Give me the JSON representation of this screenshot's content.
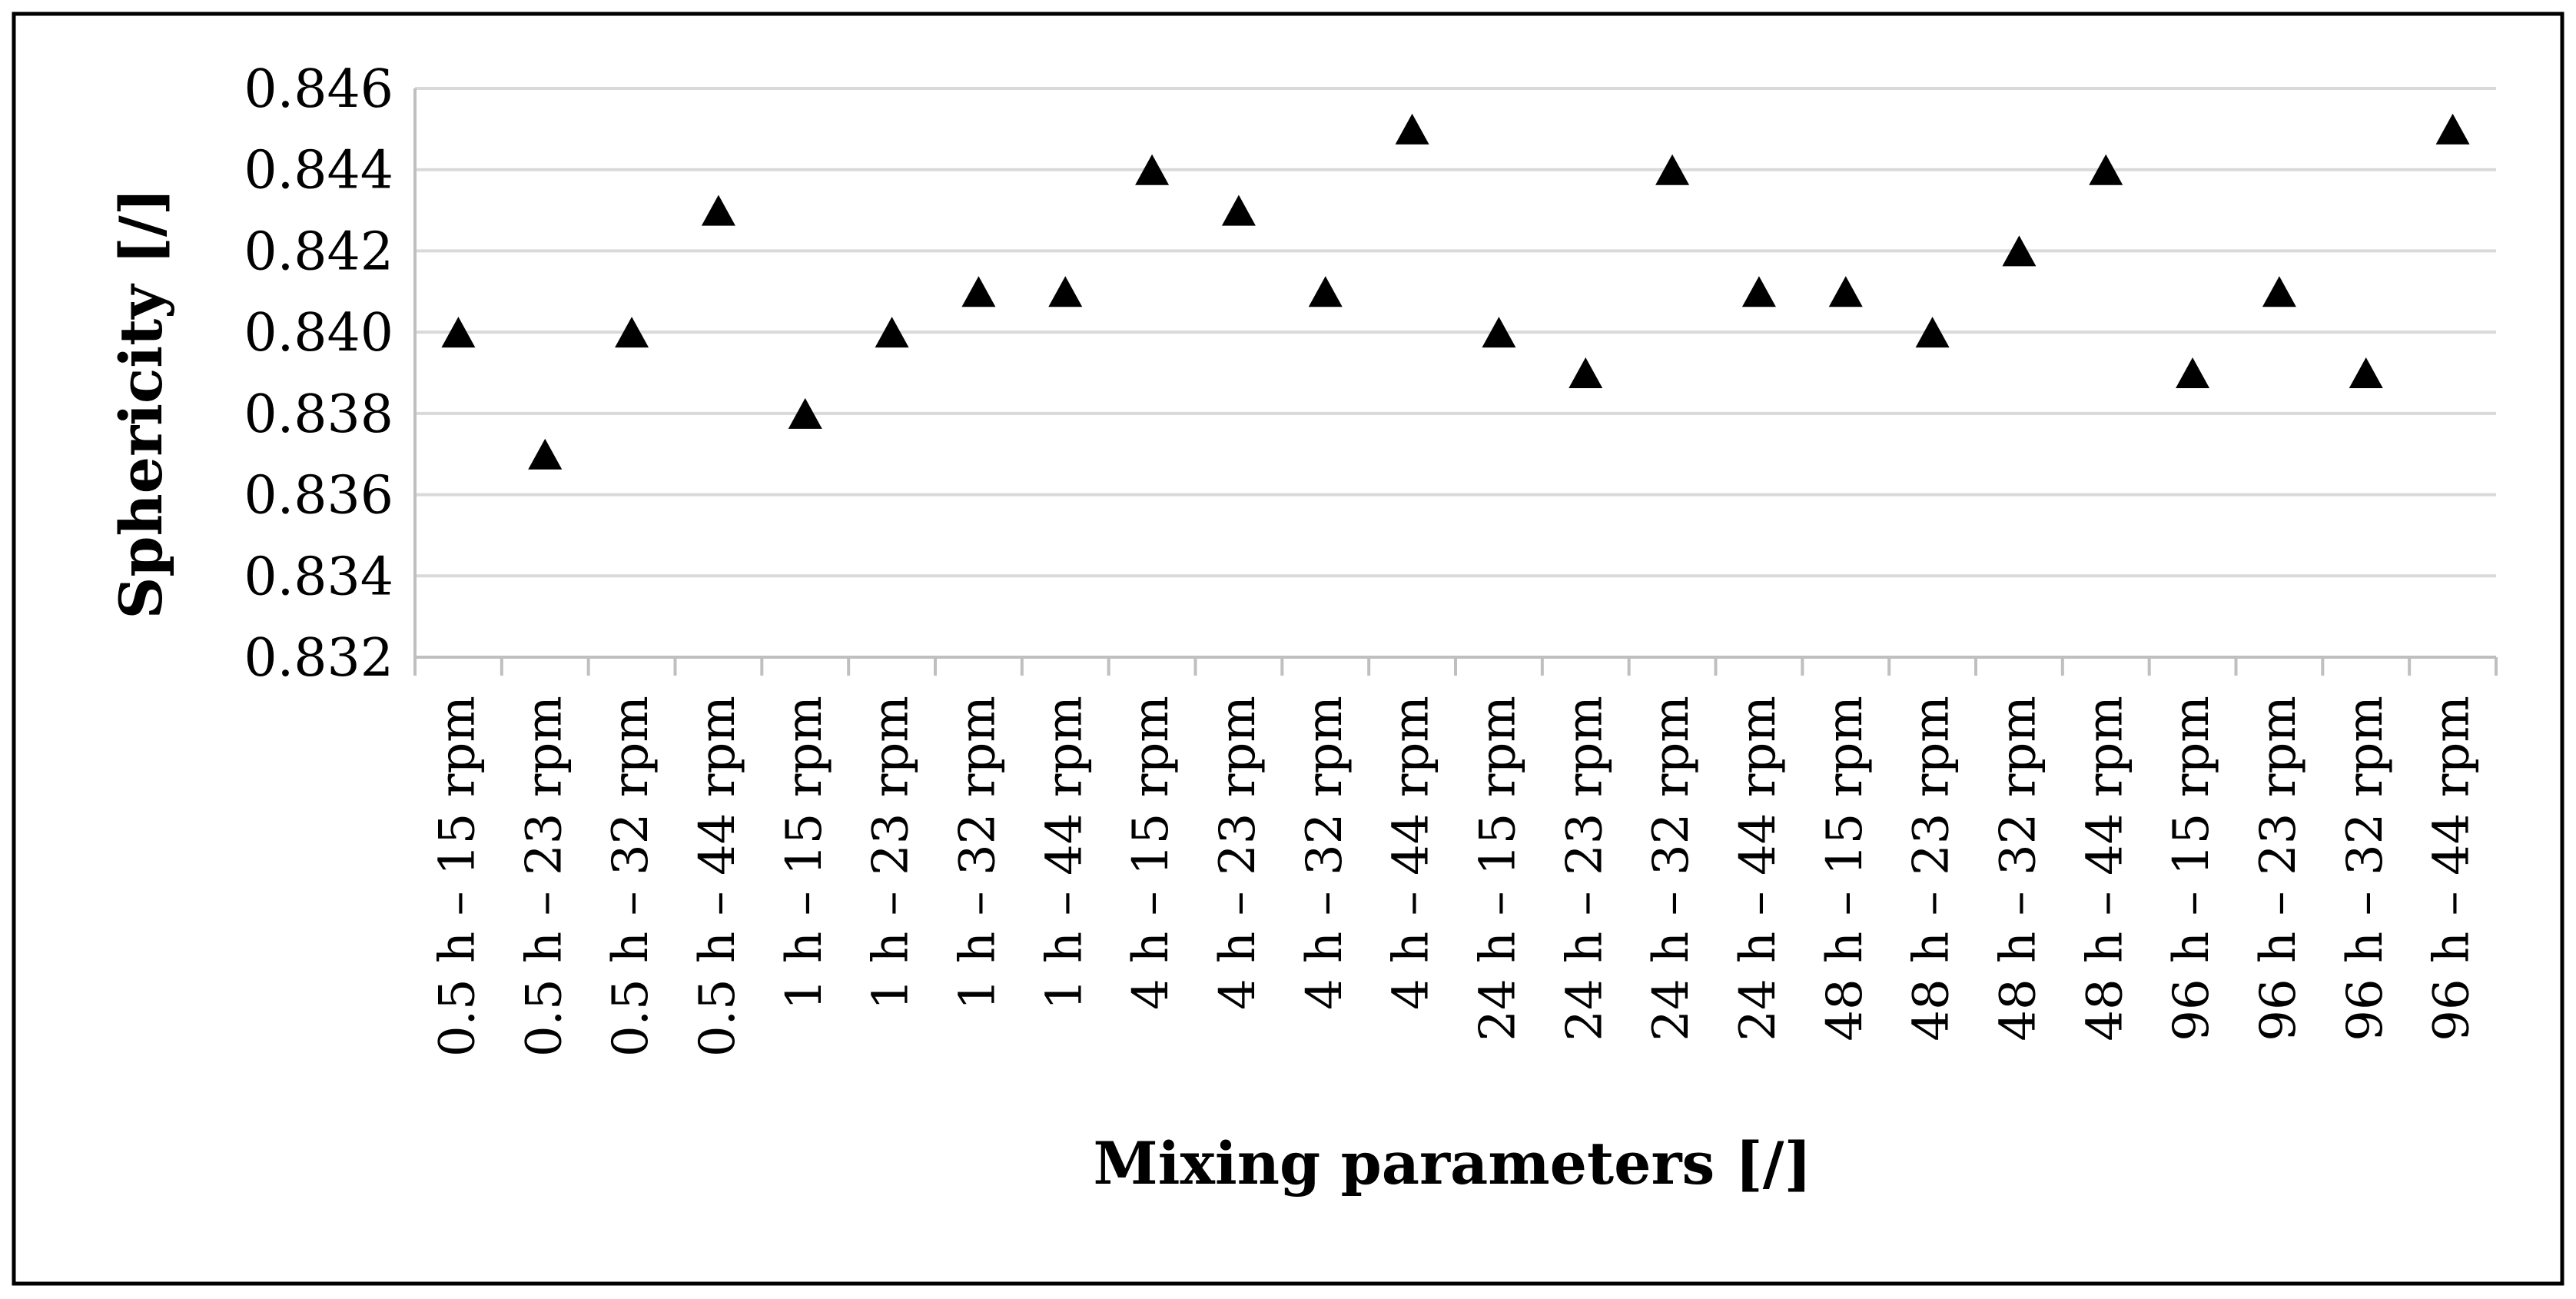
{
  "chart_data": {
    "type": "scatter",
    "title": "",
    "xlabel": "Mixing parameters [/]",
    "ylabel": "Sphericity [/]",
    "ylim": [
      0.832,
      0.846
    ],
    "ytick_step": 0.002,
    "ytick_decimals": 3,
    "grid": true,
    "legend": "none",
    "marker": "triangle",
    "colors": {
      "marker": "#000000",
      "grid": "#d9d9d9",
      "axis": "#bfbfbf",
      "frame": "#000000"
    },
    "categories": [
      "0.5 h – 15 rpm",
      "0.5 h – 23 rpm",
      "0.5 h – 32 rpm",
      "0.5 h – 44 rpm",
      "1 h – 15 rpm",
      "1 h – 23 rpm",
      "1 h – 32 rpm",
      "1 h – 44 rpm",
      "4 h – 15 rpm",
      "4 h – 23 rpm",
      "4 h – 32 rpm",
      "4 h – 44 rpm",
      "24 h – 15 rpm",
      "24 h – 23 rpm",
      "24 h – 32 rpm",
      "24 h – 44 rpm",
      "48 h – 15 rpm",
      "48 h – 23 rpm",
      "48 h – 32 rpm",
      "48 h – 44 rpm",
      "96 h – 15 rpm",
      "96 h – 23 rpm",
      "96 h – 32 rpm",
      "96 h – 44 rpm"
    ],
    "values": [
      0.84,
      0.837,
      0.84,
      0.843,
      0.838,
      0.84,
      0.841,
      0.841,
      0.844,
      0.843,
      0.841,
      0.845,
      0.84,
      0.839,
      0.844,
      0.841,
      0.841,
      0.84,
      0.842,
      0.844,
      0.839,
      0.841,
      0.839,
      0.845
    ]
  }
}
